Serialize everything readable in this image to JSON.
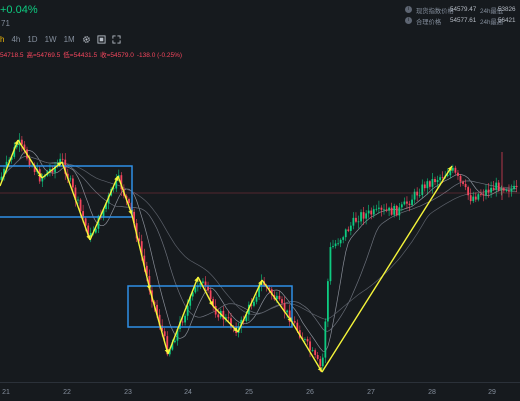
{
  "header": {
    "change": "+0.04%",
    "sub": "71"
  },
  "info_panel": {
    "rows": [
      {
        "label": "现货指数价格",
        "value": "54579.47",
        "label2": "24h最低",
        "value2": "53826"
      },
      {
        "label": "合理价格",
        "value": "54577.61",
        "label2": "24h最高",
        "value2": "56421"
      }
    ]
  },
  "toolbar": {
    "timeframes": [
      "h",
      "4h",
      "1D",
      "1W",
      "1M"
    ],
    "active": "h",
    "tools": [
      "gear-icon",
      "expand-icon",
      "fullscreen-icon"
    ]
  },
  "ohlc": {
    "open": "54718.5",
    "high": "高=54769.5",
    "low": "低=54431.5",
    "close": "收=54579.0",
    "change": "-138.0 (-0.25%)"
  },
  "x_axis": {
    "ticks": [
      "21",
      "22",
      "23",
      "24",
      "25",
      "26",
      "27",
      "28",
      "29"
    ]
  },
  "colors": {
    "up": "#0ecb81",
    "down": "#f6465d",
    "annotation_line": "#f5f53a",
    "annotation_box": "#2f8fe6",
    "background": "#161a1e"
  },
  "chart_data": {
    "type": "candlestick",
    "x_ticks": [
      "21",
      "22",
      "23",
      "24",
      "25",
      "26",
      "27",
      "28",
      "29"
    ],
    "last_price": 54579.0,
    "grid": false
  }
}
